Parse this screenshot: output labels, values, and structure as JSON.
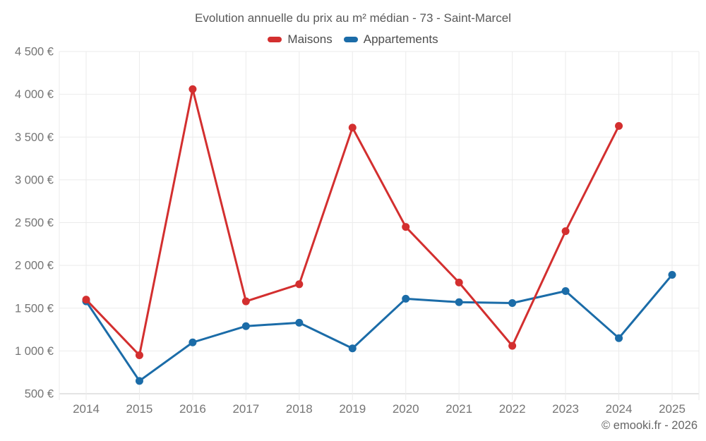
{
  "title": "Evolution annuelle du prix au m² médian - 73 - Saint-Marcel",
  "footer": "© emooki.fr - 2026",
  "colors": {
    "maisons": "#d32f2f",
    "appartements": "#1b6ca8",
    "grid": "#ebebeb",
    "axis": "#c8c8c8",
    "tick_text": "#757575",
    "title_text": "#595959",
    "footer_text": "#666666"
  },
  "chart_data": {
    "type": "line",
    "title": "Evolution annuelle du prix au m² médian - 73 - Saint-Marcel",
    "categories": [
      "2014",
      "2015",
      "2016",
      "2017",
      "2018",
      "2019",
      "2020",
      "2021",
      "2022",
      "2023",
      "2024",
      "2025"
    ],
    "series": [
      {
        "name": "Maisons",
        "color": "#d32f2f",
        "values": [
          1600,
          950,
          4060,
          1580,
          1780,
          3610,
          2450,
          1800,
          1060,
          2400,
          3630,
          null
        ]
      },
      {
        "name": "Appartements",
        "color": "#1b6ca8",
        "values": [
          1580,
          650,
          1100,
          1290,
          1330,
          1030,
          1610,
          1570,
          1560,
          1700,
          1150,
          1890
        ]
      }
    ],
    "xlabel": "",
    "ylabel": "",
    "ylim": [
      500,
      4500
    ],
    "yticks": [
      500,
      1000,
      1500,
      2000,
      2500,
      3000,
      3500,
      4000,
      4500
    ],
    "ytick_labels": [
      "500 €",
      "1 000 €",
      "1 500 €",
      "2 000 €",
      "2 500 €",
      "3 000 €",
      "3 500 €",
      "4 000 €",
      "4 500 €"
    ],
    "grid": true,
    "legend_position": "top",
    "currency": "€"
  }
}
